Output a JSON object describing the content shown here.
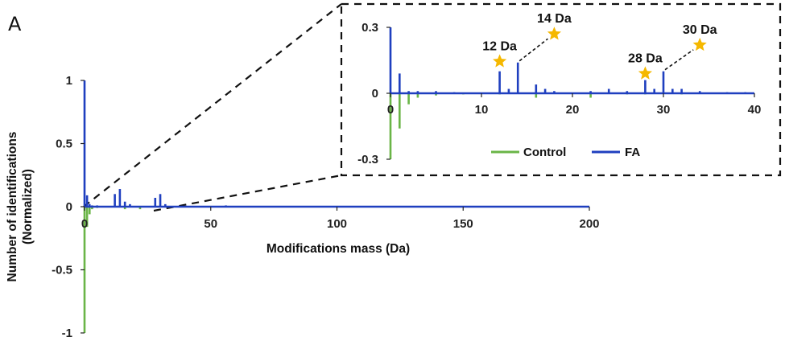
{
  "panel_label": "A",
  "colors": {
    "control": "#6ab547",
    "fa": "#1f3fbf",
    "star": "#f5b800"
  },
  "chart_data": [
    {
      "type": "bar",
      "xlabel": "Modifications mass (Da)",
      "ylabel_line1": "Number of identifications",
      "ylabel_line2": "(Normalized)",
      "xlim": [
        0,
        200
      ],
      "ylim": [
        -1,
        1
      ],
      "xticks": [
        "0",
        "50",
        "100",
        "150",
        "200"
      ],
      "xtick_values": [
        0,
        50,
        100,
        150,
        200
      ],
      "yticks": [
        "1",
        "0.5",
        "0",
        "-0.5",
        "-1"
      ],
      "ytick_values": [
        1,
        0.5,
        0,
        -0.5,
        -1
      ],
      "series": [
        {
          "key": "fa",
          "x": [
            0,
            1,
            2,
            3,
            5,
            12,
            14,
            16,
            18,
            28,
            30,
            32,
            56
          ],
          "values": [
            1.0,
            0.09,
            0.02,
            0.01,
            0.01,
            0.1,
            0.14,
            0.04,
            0.02,
            0.07,
            0.1,
            0.02,
            0.01
          ]
        },
        {
          "key": "control",
          "x": [
            0,
            1,
            2,
            3,
            5,
            16,
            22
          ],
          "values": [
            -1.0,
            -0.16,
            -0.06,
            -0.02,
            -0.01,
            -0.02,
            -0.02
          ]
        }
      ]
    },
    {
      "type": "bar",
      "xlim": [
        0,
        40
      ],
      "ylim": [
        -0.3,
        0.3
      ],
      "xticks": [
        "0",
        "10",
        "20",
        "30",
        "40"
      ],
      "xtick_values": [
        0,
        10,
        20,
        30,
        40
      ],
      "yticks": [
        "0.3",
        "0",
        "-0.3"
      ],
      "ytick_values": [
        0.3,
        0,
        -0.3
      ],
      "legend": [
        {
          "key": "control",
          "label": "Control"
        },
        {
          "key": "fa",
          "label": "FA"
        }
      ],
      "legend_position": "bottom",
      "series": [
        {
          "key": "fa",
          "x": [
            0,
            1,
            2,
            3,
            5,
            7,
            12,
            13,
            14,
            16,
            17,
            18,
            22,
            24,
            26,
            28,
            29,
            30,
            31,
            32,
            34,
            37,
            39
          ],
          "values": [
            0.3,
            0.09,
            0.01,
            0.01,
            0.01,
            0.005,
            0.1,
            0.02,
            0.14,
            0.04,
            0.02,
            0.01,
            0.01,
            0.02,
            0.01,
            0.06,
            0.02,
            0.1,
            0.02,
            0.02,
            0.01,
            0.005,
            0.005
          ]
        },
        {
          "key": "control",
          "x": [
            0,
            1,
            2,
            3,
            5,
            8,
            12,
            16,
            22,
            26,
            28,
            32
          ],
          "values": [
            -0.3,
            -0.16,
            -0.05,
            -0.02,
            -0.01,
            -0.005,
            -0.005,
            -0.02,
            -0.02,
            -0.005,
            -0.005,
            -0.005
          ]
        }
      ],
      "annotations": [
        {
          "label": "12 Da",
          "x": 12,
          "y": 0.1,
          "star_x": 12,
          "star_y": 0.145
        },
        {
          "label": "14 Da",
          "x": 14,
          "y": 0.14,
          "star_x": 18,
          "star_y": 0.27
        },
        {
          "label": "28 Da",
          "x": 28,
          "y": 0.06,
          "star_x": 28,
          "star_y": 0.09
        },
        {
          "label": "30 Da",
          "x": 30,
          "y": 0.1,
          "star_x": 34,
          "star_y": 0.22
        }
      ]
    }
  ]
}
